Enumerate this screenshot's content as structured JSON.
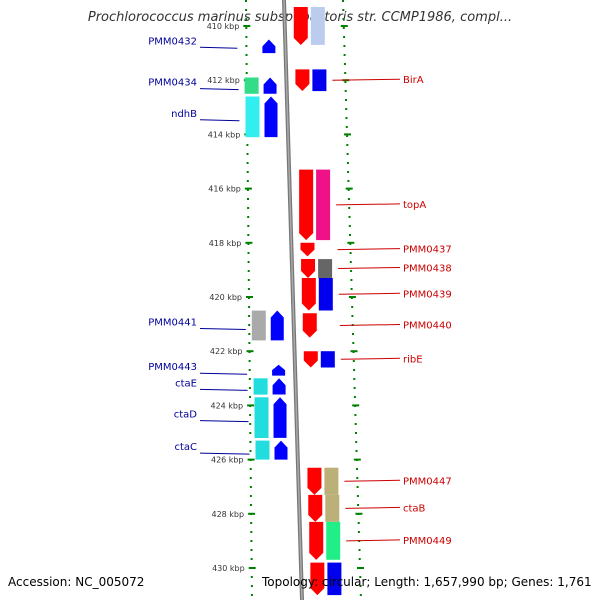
{
  "title": "Prochlorococcus marinus subsp. pastoris str. CCMP1986, compl...",
  "footer": {
    "accession": "Accession: NC_005072",
    "summary": "Topology: circular; Length: 1,657,990 bp; Genes: 1,761"
  },
  "colors": {
    "cds_forward": "#0000ff",
    "cds_reverse": "#ff0000",
    "backbone": "#888888",
    "ticks": "#008000",
    "left_label": "#000099",
    "right_label": "#cc0000"
  },
  "kbp_ticks": [
    {
      "kbp": 410,
      "label": "410 kbp"
    },
    {
      "kbp": 412,
      "label": "412 kbp"
    },
    {
      "kbp": 414,
      "label": "414 kbp"
    },
    {
      "kbp": 416,
      "label": "416 kbp"
    },
    {
      "kbp": 418,
      "label": "418 kbp"
    },
    {
      "kbp": 420,
      "label": "420 kbp"
    },
    {
      "kbp": 422,
      "label": "422 kbp"
    },
    {
      "kbp": 424,
      "label": "424 kbp"
    },
    {
      "kbp": 426,
      "label": "426 kbp"
    },
    {
      "kbp": 428,
      "label": "428 kbp"
    },
    {
      "kbp": 430,
      "label": "430 kbp"
    }
  ],
  "forward_genes": [
    {
      "name": "PMM0432",
      "start": 410.5,
      "end": 411.0,
      "cog_color": null
    },
    {
      "name": "PMM0434",
      "start": 411.9,
      "end": 412.5,
      "cog_color": "#33dd88"
    },
    {
      "name": "ndhB",
      "start": 412.6,
      "end": 414.1,
      "cog_color": "#33eeee"
    },
    {
      "name": "PMM0441",
      "start": 420.5,
      "end": 421.6,
      "cog_color": "#aaaaaa"
    },
    {
      "name": "PMM0443",
      "start": 422.5,
      "end": 422.9,
      "cog_color": null
    },
    {
      "name": "ctaE",
      "start": 423.0,
      "end": 423.6,
      "cog_color": "#22dddd"
    },
    {
      "name": "ctaD",
      "start": 423.7,
      "end": 425.2,
      "cog_color": "#22dddd"
    },
    {
      "name": "ctaC",
      "start": 425.3,
      "end": 426.0,
      "cog_color": "#22dddd"
    }
  ],
  "reverse_genes": [
    {
      "name": "",
      "start": 409.3,
      "end": 410.7,
      "cog_color": "#bbccee"
    },
    {
      "name": "BirA",
      "start": 411.6,
      "end": 412.4,
      "cog_color": "#0000ee"
    },
    {
      "name": "topA",
      "start": 415.3,
      "end": 417.9,
      "cog_color": "#ee1188"
    },
    {
      "name": "PMM0437",
      "start": 418.0,
      "end": 418.5,
      "cog_color": null
    },
    {
      "name": "PMM0438",
      "start": 418.6,
      "end": 419.3,
      "cog_color": "#666666"
    },
    {
      "name": "PMM0439",
      "start": 419.3,
      "end": 420.5,
      "cog_color": "#0000ee"
    },
    {
      "name": "PMM0440",
      "start": 420.6,
      "end": 421.5,
      "cog_color": null
    },
    {
      "name": "ribE",
      "start": 422.0,
      "end": 422.6,
      "cog_color": "#0000ee"
    },
    {
      "name": "PMM0447",
      "start": 426.3,
      "end": 427.3,
      "cog_color": "#bbb077"
    },
    {
      "name": "ctaB",
      "start": 427.3,
      "end": 428.3,
      "cog_color": "#bbb077"
    },
    {
      "name": "PMM0449",
      "start": 428.3,
      "end": 429.7,
      "cog_color": "#22ee88"
    },
    {
      "name": "",
      "start": 429.8,
      "end": 431.0,
      "cog_color": "#0000ee"
    }
  ]
}
